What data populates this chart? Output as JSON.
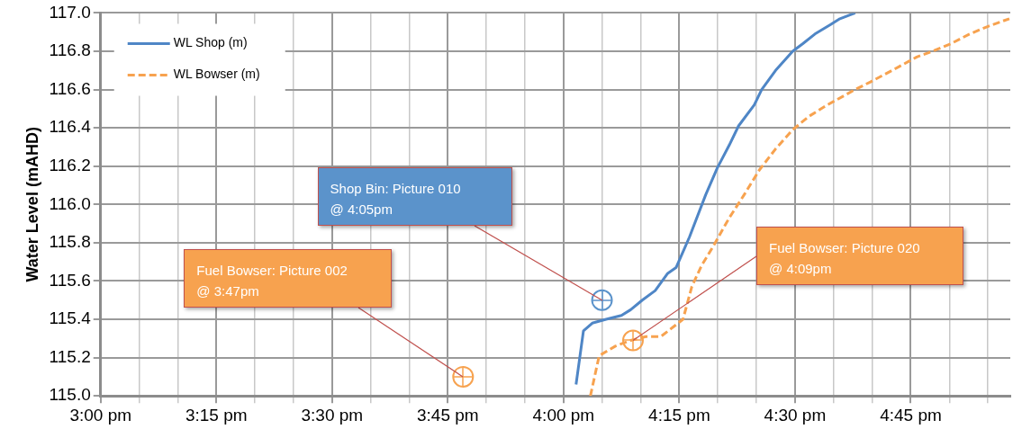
{
  "chart_data": {
    "type": "line",
    "ylabel": "Water Level (mAHD)",
    "xlim": [
      15,
      16.965
    ],
    "ylim": [
      115,
      117
    ],
    "xticks": [
      {
        "value": 15,
        "label": "3:00 pm"
      },
      {
        "value": 15.0833,
        "label": null
      },
      {
        "value": 15.1667,
        "label": null
      },
      {
        "value": 15.25,
        "label": "3:15 pm"
      },
      {
        "value": 15.3333,
        "label": null
      },
      {
        "value": 15.4167,
        "label": null
      },
      {
        "value": 15.5,
        "label": "3:30 pm"
      },
      {
        "value": 15.5833,
        "label": null
      },
      {
        "value": 15.6667,
        "label": null
      },
      {
        "value": 15.75,
        "label": "3:45 pm"
      },
      {
        "value": 15.8333,
        "label": null
      },
      {
        "value": 15.9167,
        "label": null
      },
      {
        "value": 16,
        "label": "4:00 pm"
      },
      {
        "value": 16.0833,
        "label": null
      },
      {
        "value": 16.1667,
        "label": null
      },
      {
        "value": 16.25,
        "label": "4:15 pm"
      },
      {
        "value": 16.3333,
        "label": null
      },
      {
        "value": 16.4167,
        "label": null
      },
      {
        "value": 16.5,
        "label": "4:30 pm"
      },
      {
        "value": 16.5833,
        "label": null
      },
      {
        "value": 16.6667,
        "label": null
      },
      {
        "value": 16.75,
        "label": "4:45 pm"
      },
      {
        "value": 16.8333,
        "label": null
      },
      {
        "value": 16.9167,
        "label": null
      }
    ],
    "yticks": [
      {
        "value": 115,
        "label": "115.0"
      },
      {
        "value": 115.2,
        "label": "115.2"
      },
      {
        "value": 115.4,
        "label": "115.4"
      },
      {
        "value": 115.6,
        "label": "115.6"
      },
      {
        "value": 115.8,
        "label": "115.8"
      },
      {
        "value": 116,
        "label": "116.0"
      },
      {
        "value": 116.2,
        "label": "116.2"
      },
      {
        "value": 116.4,
        "label": "116.4"
      },
      {
        "value": 116.6,
        "label": "116.6"
      },
      {
        "value": 116.8,
        "label": "116.8"
      },
      {
        "value": 117,
        "label": "117.0"
      }
    ],
    "grid": true,
    "legend": "top left",
    "marker": "none",
    "series": [
      {
        "name": "WL Shop (m)",
        "color": "#4f86c6",
        "line_style": "solid",
        "x": [
          16.027,
          16.043,
          16.062,
          16.092,
          16.125,
          16.145,
          16.17,
          16.198,
          16.225,
          16.243,
          16.272,
          16.307,
          16.332,
          16.358,
          16.378,
          16.412,
          16.428,
          16.458,
          16.495,
          16.517,
          16.543,
          16.577,
          16.597,
          16.63
        ],
        "values": [
          115.06,
          115.34,
          115.38,
          115.4,
          115.42,
          115.45,
          115.5,
          115.55,
          115.64,
          115.67,
          115.83,
          116.05,
          116.19,
          116.31,
          116.41,
          116.52,
          116.6,
          116.7,
          116.8,
          116.84,
          116.89,
          116.94,
          116.97,
          117.0
        ]
      },
      {
        "name": "WL Bowser (m)",
        "color": "#f7a24f",
        "line_style": "dashed",
        "x": [
          16.058,
          16.077,
          16.112,
          16.145,
          16.178,
          16.21,
          16.237,
          16.258,
          16.277,
          16.298,
          16.323,
          16.358,
          16.39,
          16.423,
          16.458,
          16.495,
          16.53,
          16.57,
          16.63,
          16.663,
          16.71,
          16.763,
          16.797,
          16.837,
          16.877,
          16.917,
          16.963
        ],
        "values": [
          115.0,
          115.21,
          115.26,
          115.29,
          115.31,
          115.31,
          115.36,
          115.4,
          115.57,
          115.68,
          115.78,
          115.93,
          116.05,
          116.18,
          116.29,
          116.39,
          116.46,
          116.52,
          116.6,
          116.64,
          116.7,
          116.77,
          116.8,
          116.84,
          116.89,
          116.93,
          116.97
        ]
      },
      {
        "type": "scatter",
        "color": "#5b93cb",
        "marker": "circle",
        "x": [
          16.083
        ],
        "values": [
          115.5
        ]
      },
      {
        "type": "scatter",
        "color": "#f7a24f",
        "marker": "circle",
        "x": [
          15.783,
          16.15
        ],
        "values": [
          115.1,
          115.29
        ]
      }
    ],
    "annotations": [
      {
        "text": "Fuel Bowser: Picture 002 @ 3:47pm",
        "x": 15.783,
        "y": 115.1
      },
      {
        "text": "Shop Bin: Picture 010 @ 4:05pm",
        "x": 16.083,
        "y": 115.5
      },
      {
        "text": "Fuel Bowser: Picture 020 @ 4:09pm",
        "x": 16.15,
        "y": 115.29
      }
    ]
  }
}
